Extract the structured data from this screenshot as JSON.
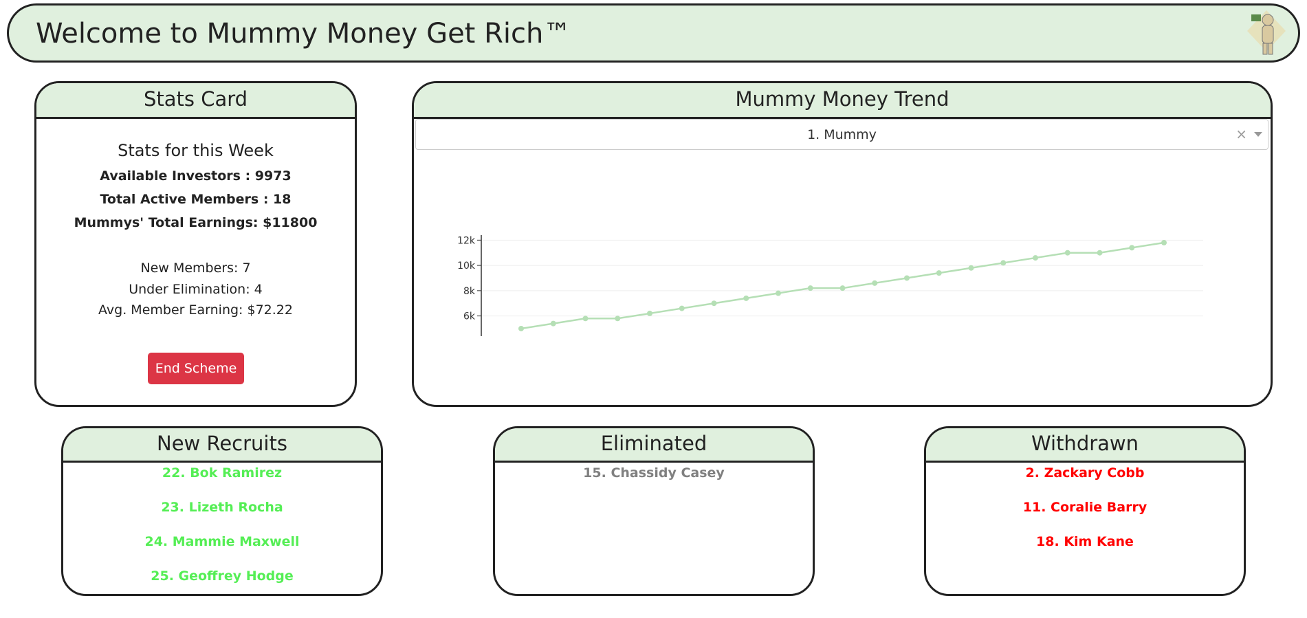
{
  "header": {
    "title": "Welcome to Mummy Money Get Rich™"
  },
  "stats_card": {
    "title": "Stats Card",
    "subtitle": "Stats for this Week",
    "lines": [
      "Available Investors : 9973",
      "Total Active Members : 18",
      "Mummys' Total Earnings: $11800"
    ],
    "details": [
      "New Members: 7",
      "Under Elimination: 4",
      "Avg. Member Earning: $72.22"
    ],
    "button": "End Scheme"
  },
  "trend": {
    "title": "Mummy Money Trend",
    "dropdown": "1. Mummy"
  },
  "chart_data": {
    "type": "line",
    "color": "#b5dfb5",
    "grid": true,
    "values": [
      5000,
      5400,
      5800,
      5800,
      6200,
      6600,
      7000,
      7400,
      7800,
      8200,
      8200,
      8600,
      9000,
      9400,
      9800,
      10200,
      10600,
      11000,
      11000,
      11400,
      11800
    ],
    "ylim": [
      4400,
      12400
    ],
    "yticks": [
      {
        "value": 6000,
        "label": "6k"
      },
      {
        "value": 8000,
        "label": "8k"
      },
      {
        "value": 10000,
        "label": "10k"
      },
      {
        "value": 12000,
        "label": "12k"
      }
    ]
  },
  "new_recruits": {
    "title": "New Recruits",
    "color": "#55ee55",
    "items": [
      "22. Bok Ramirez",
      "23. Lizeth Rocha",
      "24. Mammie Maxwell",
      "25. Geoffrey Hodge"
    ]
  },
  "eliminated": {
    "title": "Eliminated",
    "color": "#808080",
    "items": [
      "15. Chassidy Casey"
    ]
  },
  "withdrawn": {
    "title": "Withdrawn",
    "color": "#ff0000",
    "items": [
      "2. Zackary Cobb",
      "11. Coralie Barry",
      "18. Kim Kane"
    ]
  }
}
